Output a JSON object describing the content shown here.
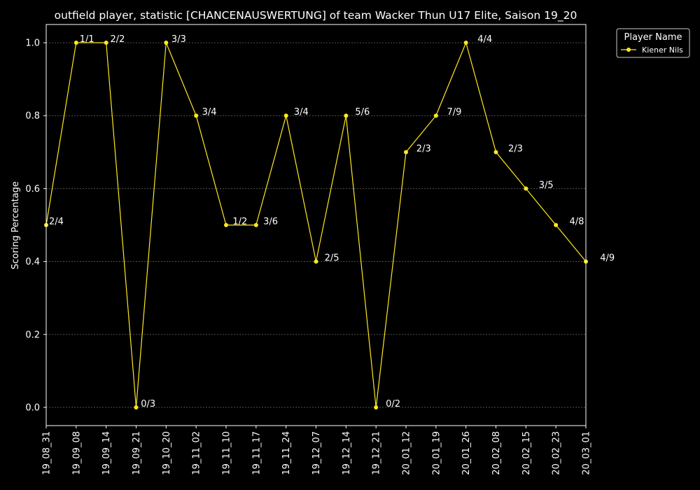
{
  "chart_data": {
    "type": "line",
    "title": "outfield player, statistic [CHANCENAUSWERTUNG] of team Wacker Thun U17 Elite, Saison 19_20",
    "xlabel": "",
    "ylabel": "Scoring Percentage",
    "ylim": [
      -0.05,
      1.05
    ],
    "yticks": [
      "0.0",
      "0.2",
      "0.4",
      "0.6",
      "0.8",
      "1.0"
    ],
    "grid": true,
    "legend_placement": "outside-top-right",
    "legend_title": "Player Name",
    "categories": [
      "19_08_31",
      "19_09_08",
      "19_09_14",
      "19_09_21",
      "19_10_20",
      "19_11_02",
      "19_11_10",
      "19_11_17",
      "19_11_24",
      "19_12_07",
      "19_12_14",
      "19_12_21",
      "20_01_12",
      "20_01_19",
      "20_01_26",
      "20_02_08",
      "20_02_15",
      "20_02_23",
      "20_03_01"
    ],
    "series": [
      {
        "name": "Kiener Nils",
        "color": "#ffe91f",
        "values": [
          0.5,
          1.0,
          1.0,
          0.0,
          1.0,
          0.8,
          0.5,
          0.5,
          0.8,
          0.4,
          0.8,
          0.0,
          0.7,
          0.8,
          1.0,
          0.7,
          0.6,
          0.5,
          0.4
        ],
        "labels": [
          "2/4",
          "1/1",
          "2/2",
          "0/3",
          "3/3",
          "3/4",
          "1/2",
          "3/6",
          "3/4",
          "2/5",
          "5/6",
          "0/2",
          "2/3",
          "7/9",
          "4/4",
          "2/3",
          "3/5",
          "4/8",
          "4/9"
        ]
      }
    ]
  }
}
